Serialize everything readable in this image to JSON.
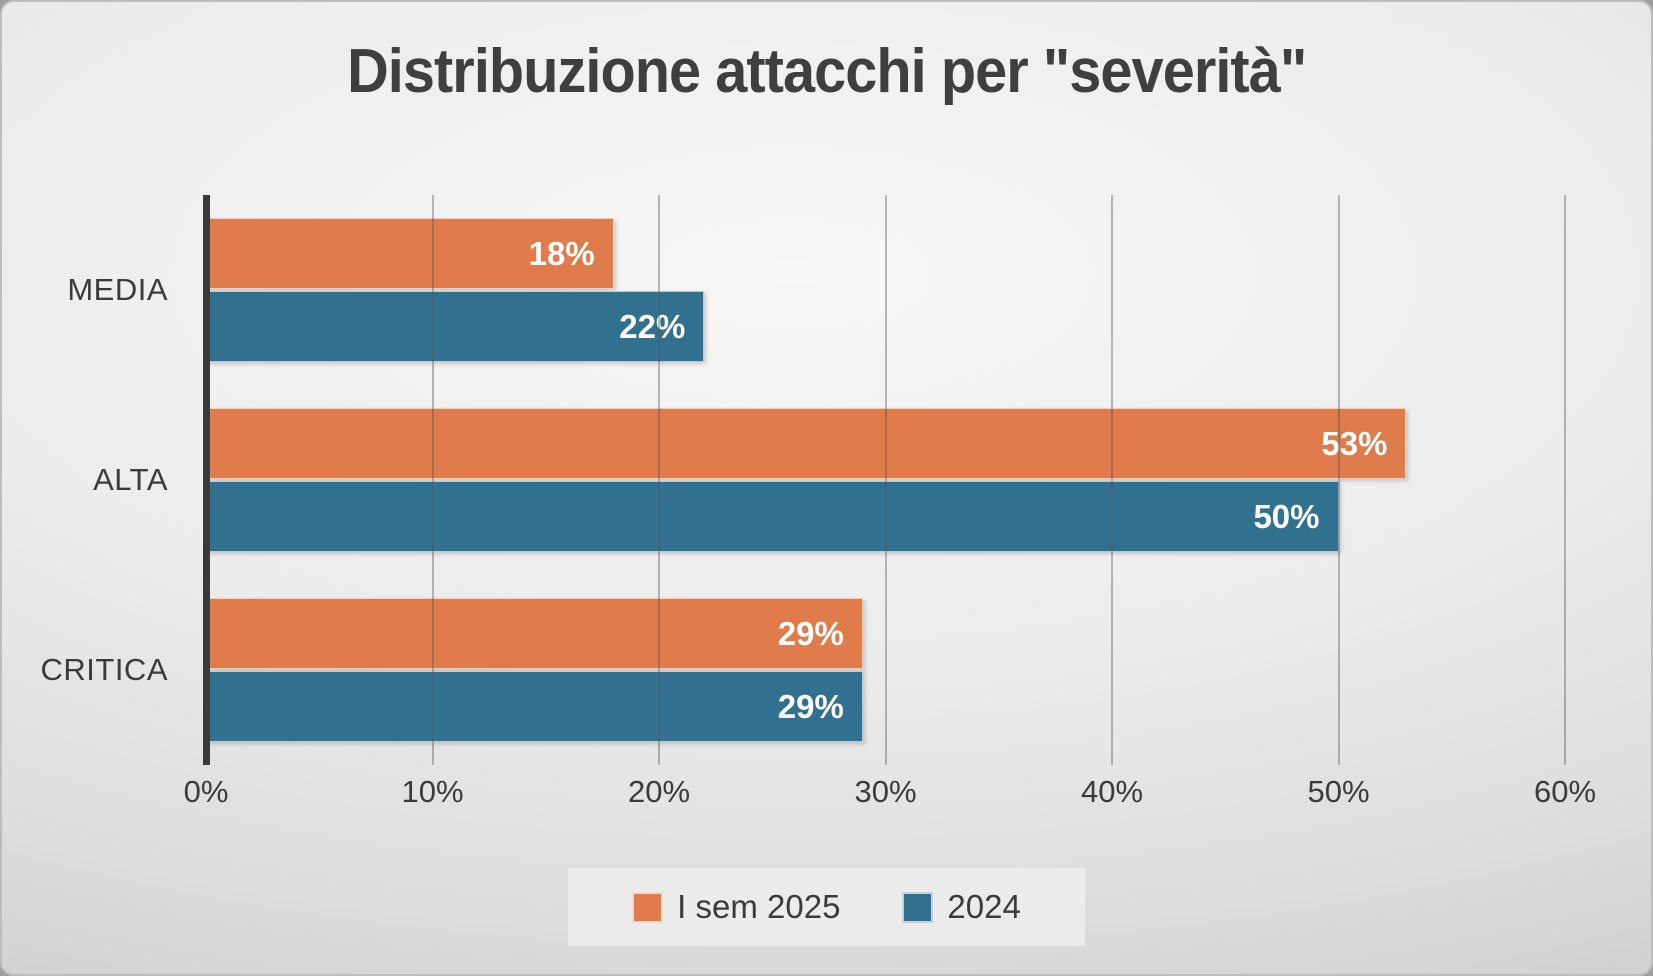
{
  "title": "Distribuzione attacchi per \"severità\"",
  "colors": {
    "title_text": "#3F3F3F",
    "axis_line": "#3A3A3A",
    "tick_text": "#3B3B3B",
    "value_label_text": "#FFFFFF",
    "series_orange": "#E07C4B",
    "series_teal": "#31718F",
    "background_light": "#F7F7F7",
    "background_dark": "#CBCBCB"
  },
  "chart_data": {
    "type": "bar",
    "orientation": "horizontal",
    "title": "Distribuzione attacchi per \"severità\"",
    "categories": [
      "MEDIA",
      "ALTA",
      "CRITICA"
    ],
    "series": [
      {
        "name": "I sem 2025",
        "color": "#E07C4B",
        "values": [
          18,
          53,
          29
        ]
      },
      {
        "name": "2024",
        "color": "#31718F",
        "values": [
          22,
          50,
          29
        ]
      }
    ],
    "value_labels": [
      [
        "18%",
        "53%",
        "29%"
      ],
      [
        "22%",
        "50%",
        "29%"
      ]
    ],
    "xlim": [
      0,
      60
    ],
    "x_ticks": [
      "0%",
      "10%",
      "20%",
      "30%",
      "40%",
      "50%",
      "60%"
    ],
    "xlabel": "",
    "ylabel": "",
    "grid": "vertical",
    "legend_position": "bottom"
  }
}
